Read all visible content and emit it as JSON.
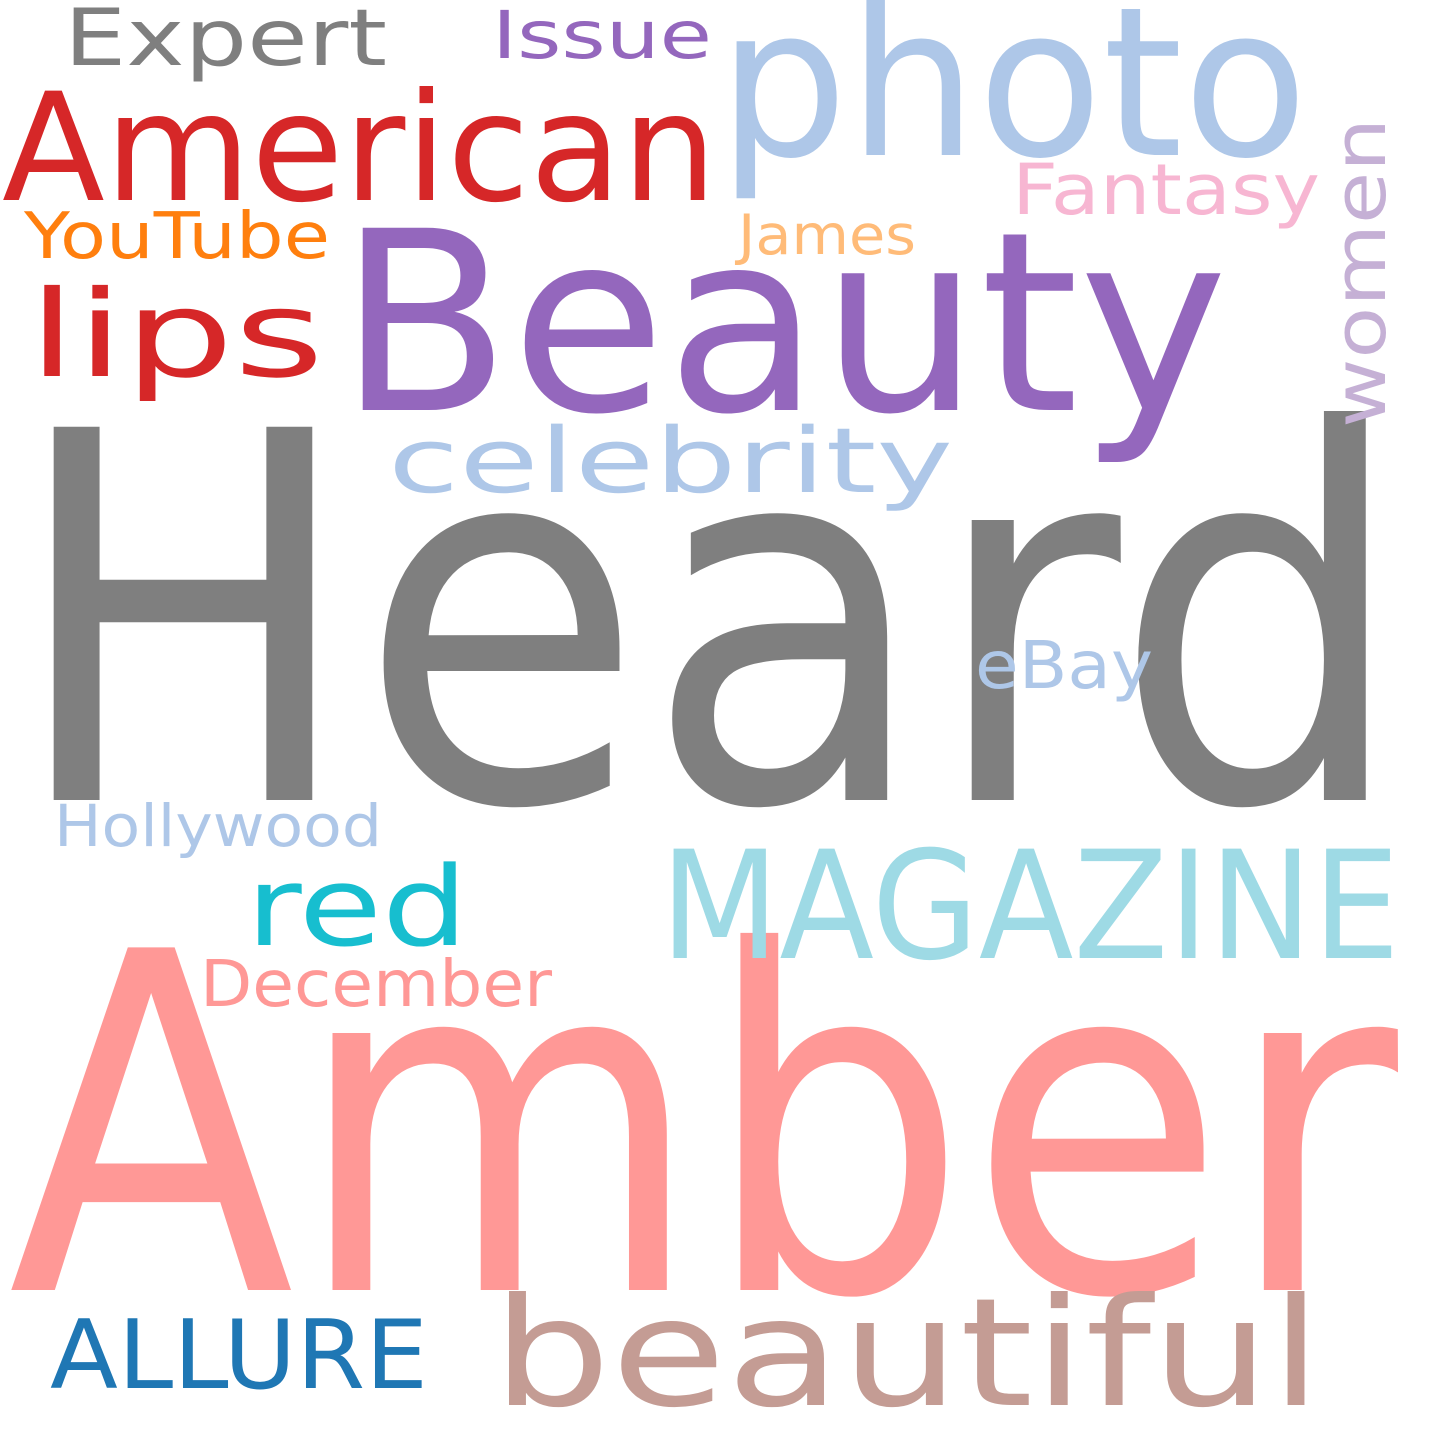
{
  "words": [
    {
      "text": "Heard",
      "color": "#7f7f7f"
    },
    {
      "text": "Amber",
      "color": "#ff9896"
    },
    {
      "text": "Beauty",
      "color": "#9467bd"
    },
    {
      "text": "photo",
      "color": "#aec7e8"
    },
    {
      "text": "MAGAZINE",
      "color": "#9edae5"
    },
    {
      "text": "beautiful",
      "color": "#c49c94"
    },
    {
      "text": "American",
      "color": "#d62728"
    },
    {
      "text": "lips",
      "color": "#d62728"
    },
    {
      "text": "celebrity",
      "color": "#aec7e8"
    },
    {
      "text": "red",
      "color": "#17becf"
    },
    {
      "text": "women",
      "color": "#c5b0d5"
    },
    {
      "text": "ALLURE",
      "color": "#1f77b4"
    },
    {
      "text": "Expert",
      "color": "#7f7f7f"
    },
    {
      "text": "Issue",
      "color": "#9467bd"
    },
    {
      "text": "Fantasy",
      "color": "#f7b6d2"
    },
    {
      "text": "YouTube",
      "color": "#ff7f0e"
    },
    {
      "text": "James",
      "color": "#ffbb78"
    },
    {
      "text": "eBay",
      "color": "#aec7e8"
    },
    {
      "text": "Hollywood",
      "color": "#aec7e8"
    },
    {
      "text": "December",
      "color": "#ff9896"
    }
  ]
}
